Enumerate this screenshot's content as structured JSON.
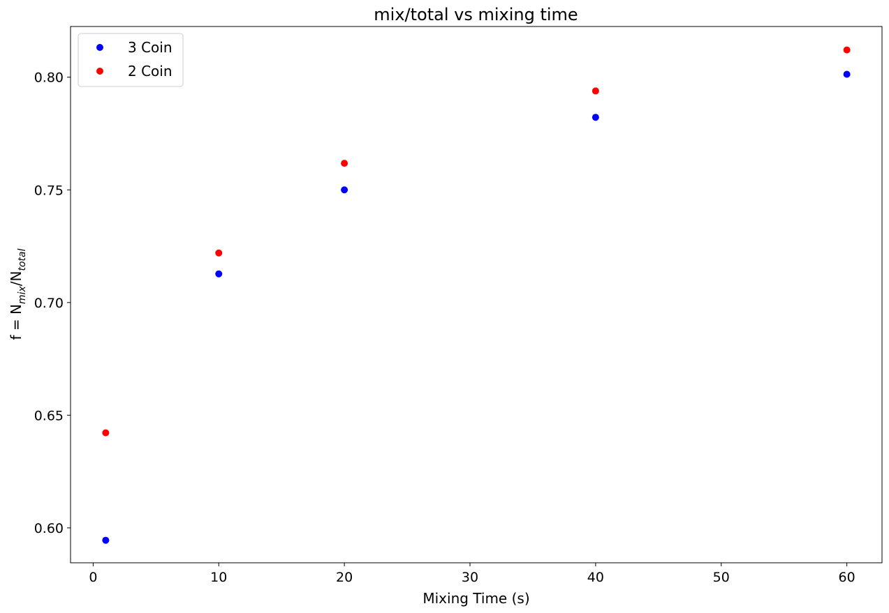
{
  "chart_data": {
    "type": "scatter",
    "title": "mix/total vs mixing time",
    "xlabel": "Mixing Time (s)",
    "ylabel": {
      "prefix": "f = N",
      "sub1": "mix",
      "middle": "/N",
      "sub2": "total"
    },
    "xlim": [
      -1.8,
      62.8
    ],
    "ylim": [
      0.5845,
      0.8225
    ],
    "xticks": [
      0,
      10,
      20,
      30,
      40,
      50,
      60
    ],
    "yticks": [
      0.6,
      0.65,
      0.7,
      0.75,
      0.8
    ],
    "grid": false,
    "legend_position": "upper-left",
    "series": [
      {
        "name": "3 Coin",
        "color": "#0000ff",
        "marker": "circle",
        "points": [
          {
            "x": 1,
            "y": 0.5945
          },
          {
            "x": 10,
            "y": 0.7127
          },
          {
            "x": 20,
            "y": 0.75
          },
          {
            "x": 40,
            "y": 0.7822
          },
          {
            "x": 60,
            "y": 0.8013
          }
        ]
      },
      {
        "name": "2 Coin",
        "color": "#ff0000",
        "marker": "circle",
        "points": [
          {
            "x": 1,
            "y": 0.6422
          },
          {
            "x": 10,
            "y": 0.722
          },
          {
            "x": 20,
            "y": 0.7618
          },
          {
            "x": 40,
            "y": 0.7939
          },
          {
            "x": 60,
            "y": 0.8121
          }
        ]
      }
    ]
  }
}
